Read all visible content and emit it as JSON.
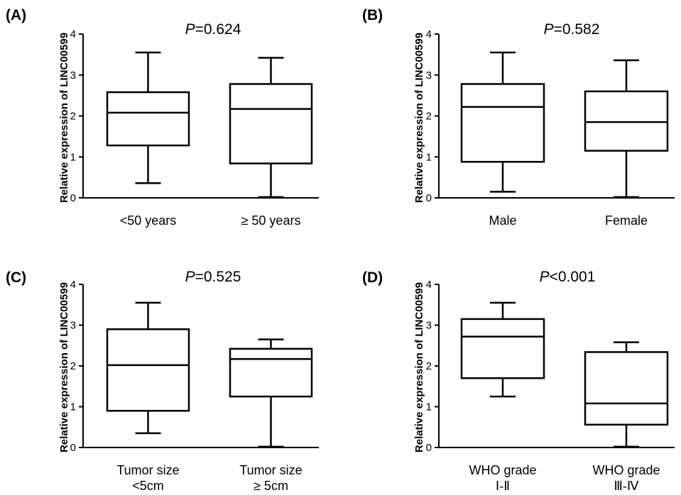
{
  "chart_data": [
    {
      "type": "box",
      "panel_label": "(A)",
      "p_prefix": "P",
      "p_suffix": "=0.624",
      "ylabel": "Relative expression of LINC00599",
      "ylim": [
        0,
        4
      ],
      "yticks": [
        "0",
        "1",
        "2",
        "3",
        "4"
      ],
      "categories": [
        [
          "<50 years"
        ],
        [
          "≥ 50 years"
        ]
      ],
      "boxes": [
        {
          "min": 0.36,
          "q1": 1.28,
          "median": 2.08,
          "q3": 2.58,
          "max": 3.55
        },
        {
          "min": 0.02,
          "q1": 0.84,
          "median": 2.17,
          "q3": 2.78,
          "max": 3.42
        }
      ]
    },
    {
      "type": "box",
      "panel_label": "(B)",
      "p_prefix": "P",
      "p_suffix": "=0.582",
      "ylabel": "Relative expression of LINC00599",
      "ylim": [
        0,
        4
      ],
      "yticks": [
        "0",
        "1",
        "2",
        "3",
        "4"
      ],
      "categories": [
        [
          "Male"
        ],
        [
          "Female"
        ]
      ],
      "boxes": [
        {
          "min": 0.15,
          "q1": 0.88,
          "median": 2.22,
          "q3": 2.78,
          "max": 3.55
        },
        {
          "min": 0.02,
          "q1": 1.15,
          "median": 1.85,
          "q3": 2.6,
          "max": 3.36
        }
      ]
    },
    {
      "type": "box",
      "panel_label": "(C)",
      "p_prefix": "P",
      "p_suffix": "=0.525",
      "ylabel": "Relative expression of LINC00599",
      "ylim": [
        0,
        4
      ],
      "yticks": [
        "0",
        "1",
        "2",
        "3",
        "4"
      ],
      "categories": [
        [
          "Tumor size",
          "<5cm"
        ],
        [
          "Tumor size",
          "≥ 5cm"
        ]
      ],
      "boxes": [
        {
          "min": 0.35,
          "q1": 0.9,
          "median": 2.02,
          "q3": 2.9,
          "max": 3.55
        },
        {
          "min": 0.02,
          "q1": 1.25,
          "median": 2.17,
          "q3": 2.42,
          "max": 2.65
        }
      ]
    },
    {
      "type": "box",
      "panel_label": "(D)",
      "p_prefix": "P",
      "p_suffix": "<0.001",
      "ylabel": "Relative expression of LINC00599",
      "ylim": [
        0,
        4
      ],
      "yticks": [
        "0",
        "1",
        "2",
        "3",
        "4"
      ],
      "categories": [
        [
          "WHO grade",
          "Ⅰ-Ⅱ"
        ],
        [
          "WHO grade",
          "Ⅲ-Ⅳ"
        ]
      ],
      "boxes": [
        {
          "min": 1.25,
          "q1": 1.7,
          "median": 2.72,
          "q3": 3.15,
          "max": 3.55
        },
        {
          "min": 0.02,
          "q1": 0.56,
          "median": 1.08,
          "q3": 2.34,
          "max": 2.58
        }
      ]
    }
  ]
}
